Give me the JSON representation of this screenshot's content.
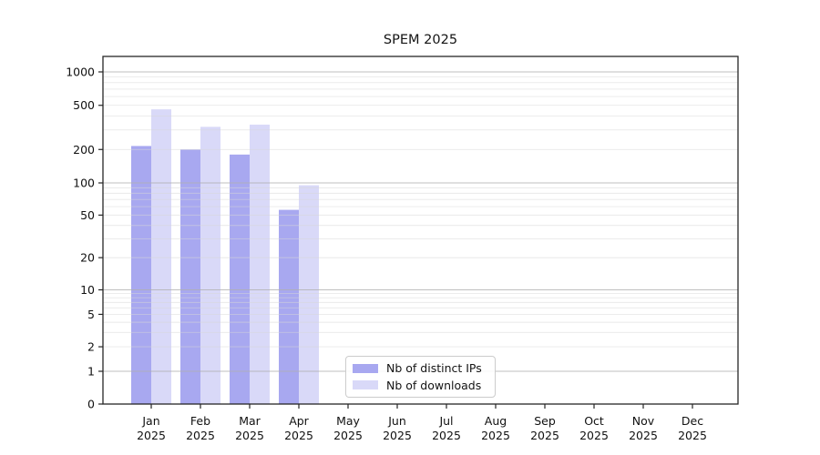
{
  "chart_data": {
    "type": "bar",
    "title": "SPEM 2025",
    "scale": "symlog",
    "grid": "both",
    "legend_position": "lower center",
    "months": [
      "Jan",
      "Feb",
      "Mar",
      "Apr",
      "May",
      "Jun",
      "Jul",
      "Aug",
      "Sep",
      "Oct",
      "Nov",
      "Dec"
    ],
    "year": "2025",
    "series": [
      {
        "name": "Nb of distinct IPs",
        "color": "#a8a8f0",
        "values": [
          215,
          200,
          180,
          56,
          0,
          0,
          0,
          0,
          0,
          0,
          0,
          0
        ]
      },
      {
        "name": "Nb of downloads",
        "color": "#d9d9f8",
        "values": [
          460,
          320,
          335,
          95,
          0,
          0,
          0,
          0,
          0,
          0,
          0,
          0
        ]
      }
    ],
    "yticks": [
      0,
      1,
      2,
      5,
      10,
      20,
      50,
      100,
      200,
      500,
      1000
    ],
    "ylim": [
      0,
      1400
    ],
    "colors": {
      "major_grid": "#b0b0b0",
      "minor_grid": "#d7d7d7",
      "spine": "#262626",
      "tick_text": "#111111"
    }
  }
}
